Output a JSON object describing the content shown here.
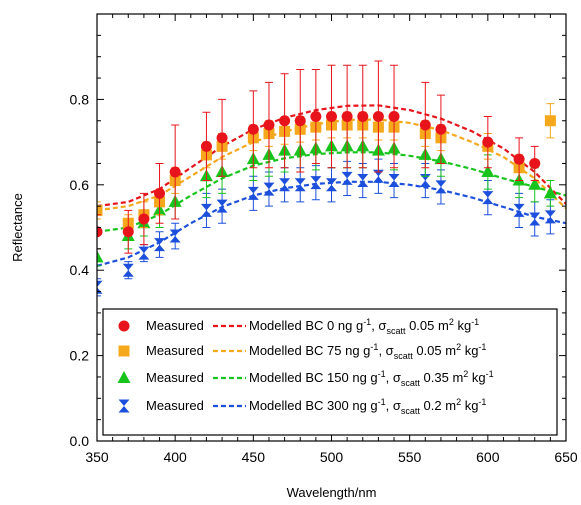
{
  "chart_data": {
    "type": "scatter",
    "xlabel": "Wavelength/nm",
    "ylabel": "Reflectance",
    "xlim": [
      350,
      650
    ],
    "ylim": [
      0.0,
      1.0
    ],
    "xticks": [
      350,
      400,
      450,
      500,
      550,
      600,
      650
    ],
    "yticks": [
      0.0,
      0.2,
      0.4,
      0.6,
      0.8
    ],
    "ytick_labels": [
      "0.0",
      "0.2",
      "0.4",
      "0.6",
      "0.8"
    ],
    "grid": false,
    "legend_position": "bottom-right",
    "series": [
      {
        "id": "s0",
        "marker": "circle",
        "color": "#e8141c",
        "line_color": "#e8141c",
        "legend_marker_label": "Measured",
        "legend_line_label": {
          "main": "Modelled BC 0 ng g",
          "sup1": "-1",
          "mid": ",  σ",
          "sub": "scatt",
          "tail": " 0.05 m",
          "sup2": "2",
          "end": " kg",
          "sup3": "-1"
        },
        "points": [
          {
            "x": 350,
            "y": 0.49,
            "err": 0.04
          },
          {
            "x": 370,
            "y": 0.49,
            "err": 0.05
          },
          {
            "x": 380,
            "y": 0.52,
            "err": 0.06
          },
          {
            "x": 390,
            "y": 0.58,
            "err": 0.07
          },
          {
            "x": 400,
            "y": 0.63,
            "err": 0.11
          },
          {
            "x": 420,
            "y": 0.69,
            "err": 0.08
          },
          {
            "x": 430,
            "y": 0.71,
            "err": 0.09
          },
          {
            "x": 450,
            "y": 0.73,
            "err": 0.09
          },
          {
            "x": 460,
            "y": 0.74,
            "err": 0.1
          },
          {
            "x": 470,
            "y": 0.75,
            "err": 0.11
          },
          {
            "x": 480,
            "y": 0.75,
            "err": 0.12
          },
          {
            "x": 490,
            "y": 0.76,
            "err": 0.11
          },
          {
            "x": 500,
            "y": 0.76,
            "err": 0.12
          },
          {
            "x": 510,
            "y": 0.76,
            "err": 0.12
          },
          {
            "x": 520,
            "y": 0.76,
            "err": 0.12
          },
          {
            "x": 530,
            "y": 0.76,
            "err": 0.13
          },
          {
            "x": 540,
            "y": 0.76,
            "err": 0.12
          },
          {
            "x": 560,
            "y": 0.74,
            "err": 0.1
          },
          {
            "x": 570,
            "y": 0.73,
            "err": 0.08
          },
          {
            "x": 600,
            "y": 0.7,
            "err": 0.06
          },
          {
            "x": 620,
            "y": 0.66,
            "err": 0.05
          },
          {
            "x": 630,
            "y": 0.65,
            "err": 0.04
          }
        ],
        "model": [
          [
            350,
            0.55
          ],
          [
            370,
            0.56
          ],
          [
            390,
            0.59
          ],
          [
            410,
            0.64
          ],
          [
            430,
            0.69
          ],
          [
            450,
            0.73
          ],
          [
            470,
            0.757
          ],
          [
            490,
            0.775
          ],
          [
            510,
            0.785
          ],
          [
            530,
            0.786
          ],
          [
            550,
            0.775
          ],
          [
            570,
            0.755
          ],
          [
            590,
            0.725
          ],
          [
            610,
            0.685
          ],
          [
            630,
            0.63
          ],
          [
            650,
            0.555
          ]
        ]
      },
      {
        "id": "s1",
        "marker": "square",
        "color": "#f5a81c",
        "line_color": "#f5a81c",
        "legend_marker_label": "Measured",
        "legend_line_label": {
          "main": "Modelled BC 75 ng g",
          "sup1": "-1",
          "mid": ",  σ",
          "sub": "scatt",
          "tail": " 0.05 m",
          "sup2": "2",
          "end": " kg",
          "sup3": "-1"
        },
        "points": [
          {
            "x": 350,
            "y": 0.54,
            "err": 0.02
          },
          {
            "x": 370,
            "y": 0.51,
            "err": 0.02
          },
          {
            "x": 380,
            "y": 0.53,
            "err": 0.03
          },
          {
            "x": 390,
            "y": 0.56,
            "err": 0.03
          },
          {
            "x": 400,
            "y": 0.61,
            "err": 0.03
          },
          {
            "x": 420,
            "y": 0.67,
            "err": 0.03
          },
          {
            "x": 430,
            "y": 0.69,
            "err": 0.03
          },
          {
            "x": 450,
            "y": 0.71,
            "err": 0.03
          },
          {
            "x": 460,
            "y": 0.72,
            "err": 0.03
          },
          {
            "x": 470,
            "y": 0.725,
            "err": 0.03
          },
          {
            "x": 480,
            "y": 0.73,
            "err": 0.03
          },
          {
            "x": 490,
            "y": 0.735,
            "err": 0.03
          },
          {
            "x": 500,
            "y": 0.74,
            "err": 0.03
          },
          {
            "x": 510,
            "y": 0.74,
            "err": 0.03
          },
          {
            "x": 520,
            "y": 0.74,
            "err": 0.03
          },
          {
            "x": 530,
            "y": 0.735,
            "err": 0.03
          },
          {
            "x": 540,
            "y": 0.735,
            "err": 0.03
          },
          {
            "x": 560,
            "y": 0.72,
            "err": 0.03
          },
          {
            "x": 570,
            "y": 0.71,
            "err": 0.03
          },
          {
            "x": 600,
            "y": 0.69,
            "err": 0.03
          },
          {
            "x": 620,
            "y": 0.64,
            "err": 0.03
          },
          {
            "x": 640,
            "y": 0.75,
            "err": 0.04
          }
        ],
        "model": [
          [
            350,
            0.54
          ],
          [
            370,
            0.55
          ],
          [
            390,
            0.575
          ],
          [
            410,
            0.62
          ],
          [
            430,
            0.665
          ],
          [
            450,
            0.7
          ],
          [
            470,
            0.725
          ],
          [
            490,
            0.742
          ],
          [
            510,
            0.752
          ],
          [
            530,
            0.753
          ],
          [
            550,
            0.745
          ],
          [
            570,
            0.728
          ],
          [
            590,
            0.7
          ],
          [
            610,
            0.665
          ],
          [
            630,
            0.615
          ],
          [
            650,
            0.545
          ]
        ]
      },
      {
        "id": "s2",
        "marker": "triangle",
        "color": "#18c41c",
        "line_color": "#18c41c",
        "legend_marker_label": "Measured",
        "legend_line_label": {
          "main": "Modelled BC 150 ng g",
          "sup1": "-1",
          "mid": ",  σ",
          "sub": "scatt",
          "tail": " 0.35 m",
          "sup2": "2",
          "end": " kg",
          "sup3": "-1"
        },
        "points": [
          {
            "x": 350,
            "y": 0.43,
            "err": 0.02
          },
          {
            "x": 370,
            "y": 0.48,
            "err": 0.03
          },
          {
            "x": 380,
            "y": 0.51,
            "err": 0.03
          },
          {
            "x": 390,
            "y": 0.54,
            "err": 0.04
          },
          {
            "x": 400,
            "y": 0.56,
            "err": 0.04
          },
          {
            "x": 420,
            "y": 0.62,
            "err": 0.05
          },
          {
            "x": 430,
            "y": 0.63,
            "err": 0.05
          },
          {
            "x": 450,
            "y": 0.66,
            "err": 0.05
          },
          {
            "x": 460,
            "y": 0.67,
            "err": 0.05
          },
          {
            "x": 470,
            "y": 0.68,
            "err": 0.05
          },
          {
            "x": 480,
            "y": 0.68,
            "err": 0.05
          },
          {
            "x": 490,
            "y": 0.685,
            "err": 0.05
          },
          {
            "x": 500,
            "y": 0.69,
            "err": 0.05
          },
          {
            "x": 510,
            "y": 0.69,
            "err": 0.05
          },
          {
            "x": 520,
            "y": 0.69,
            "err": 0.05
          },
          {
            "x": 530,
            "y": 0.68,
            "err": 0.05
          },
          {
            "x": 540,
            "y": 0.685,
            "err": 0.05
          },
          {
            "x": 560,
            "y": 0.67,
            "err": 0.05
          },
          {
            "x": 570,
            "y": 0.66,
            "err": 0.04
          },
          {
            "x": 600,
            "y": 0.63,
            "err": 0.04
          },
          {
            "x": 620,
            "y": 0.61,
            "err": 0.04
          },
          {
            "x": 630,
            "y": 0.6,
            "err": 0.04
          },
          {
            "x": 640,
            "y": 0.58,
            "err": 0.03
          }
        ],
        "model": [
          [
            350,
            0.49
          ],
          [
            370,
            0.5
          ],
          [
            390,
            0.53
          ],
          [
            410,
            0.575
          ],
          [
            430,
            0.615
          ],
          [
            450,
            0.645
          ],
          [
            470,
            0.662
          ],
          [
            490,
            0.672
          ],
          [
            510,
            0.676
          ],
          [
            530,
            0.676
          ],
          [
            550,
            0.668
          ],
          [
            570,
            0.655
          ],
          [
            590,
            0.637
          ],
          [
            610,
            0.615
          ],
          [
            630,
            0.595
          ],
          [
            650,
            0.575
          ]
        ]
      },
      {
        "id": "s3",
        "marker": "hourglass",
        "color": "#1c50dc",
        "line_color": "#1c50dc",
        "legend_marker_label": "Measured",
        "legend_line_label": {
          "main": "Modelled BC 300 ng g",
          "sup1": "-1",
          "mid": ",  σ",
          "sub": "scatt",
          "tail": " 0.2 m",
          "sup2": "2",
          "end": " kg",
          "sup3": "-1"
        },
        "points": [
          {
            "x": 350,
            "y": 0.36,
            "err": 0.02
          },
          {
            "x": 370,
            "y": 0.4,
            "err": 0.02
          },
          {
            "x": 380,
            "y": 0.44,
            "err": 0.02
          },
          {
            "x": 390,
            "y": 0.46,
            "err": 0.03
          },
          {
            "x": 400,
            "y": 0.48,
            "err": 0.03
          },
          {
            "x": 420,
            "y": 0.54,
            "err": 0.04
          },
          {
            "x": 430,
            "y": 0.55,
            "err": 0.04
          },
          {
            "x": 450,
            "y": 0.58,
            "err": 0.04
          },
          {
            "x": 460,
            "y": 0.59,
            "err": 0.04
          },
          {
            "x": 470,
            "y": 0.6,
            "err": 0.04
          },
          {
            "x": 480,
            "y": 0.6,
            "err": 0.04
          },
          {
            "x": 490,
            "y": 0.605,
            "err": 0.04
          },
          {
            "x": 500,
            "y": 0.6,
            "err": 0.04
          },
          {
            "x": 510,
            "y": 0.615,
            "err": 0.04
          },
          {
            "x": 520,
            "y": 0.61,
            "err": 0.04
          },
          {
            "x": 530,
            "y": 0.62,
            "err": 0.04
          },
          {
            "x": 540,
            "y": 0.61,
            "err": 0.04
          },
          {
            "x": 560,
            "y": 0.61,
            "err": 0.04
          },
          {
            "x": 570,
            "y": 0.595,
            "err": 0.04
          },
          {
            "x": 600,
            "y": 0.57,
            "err": 0.04
          },
          {
            "x": 620,
            "y": 0.54,
            "err": 0.04
          },
          {
            "x": 630,
            "y": 0.52,
            "err": 0.04
          },
          {
            "x": 640,
            "y": 0.525,
            "err": 0.04
          }
        ],
        "model": [
          [
            350,
            0.41
          ],
          [
            370,
            0.43
          ],
          [
            390,
            0.465
          ],
          [
            410,
            0.51
          ],
          [
            430,
            0.548
          ],
          [
            450,
            0.575
          ],
          [
            470,
            0.592
          ],
          [
            490,
            0.602
          ],
          [
            510,
            0.607
          ],
          [
            530,
            0.607
          ],
          [
            550,
            0.6
          ],
          [
            570,
            0.588
          ],
          [
            590,
            0.57
          ],
          [
            610,
            0.548
          ],
          [
            630,
            0.525
          ],
          [
            650,
            0.51
          ]
        ]
      }
    ]
  }
}
